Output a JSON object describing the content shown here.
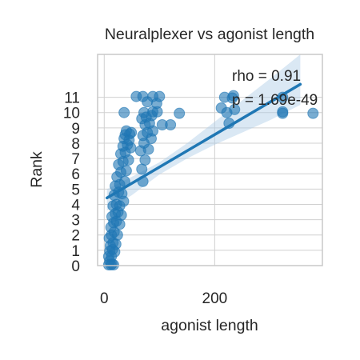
{
  "chart_data": {
    "type": "scatter",
    "title": "Neuralplexer vs agonist length",
    "xlabel": "agonist length",
    "ylabel": "Rank",
    "xlim": [
      -12,
      395
    ],
    "ylim": [
      0,
      13.8
    ],
    "x_ticks": [
      0,
      200
    ],
    "y_ticks": [
      0,
      1,
      2,
      3,
      4,
      5,
      6,
      7,
      8,
      9,
      10,
      11
    ],
    "grid": true,
    "annotations": [
      "rho = 0.91",
      "p = 1.69e-49"
    ],
    "colors": {
      "points": "#1f77b4",
      "regression_line": "#1f77b4",
      "ci_band": "#aecbe6",
      "grid": "#d0d0d0",
      "axes": "#c8c8c8"
    },
    "regression": {
      "slope": 0.0212,
      "intercept": 4.32
    },
    "confidence_band": {
      "x": [
        5,
        50,
        100,
        150,
        200,
        250,
        300,
        355
      ],
      "lower": [
        3.6,
        4.6,
        5.95,
        7.0,
        7.9,
        8.7,
        9.5,
        10.5
      ],
      "upper": [
        5.0,
        5.8,
        6.75,
        8.0,
        9.4,
        10.8,
        12.2,
        13.8
      ]
    },
    "points": [
      {
        "x": 8,
        "y": 0.05
      },
      {
        "x": 12,
        "y": 0.05
      },
      {
        "x": 14,
        "y": 0.1
      },
      {
        "x": 17,
        "y": 0.05
      },
      {
        "x": 10,
        "y": 0.3
      },
      {
        "x": 8,
        "y": 0.6
      },
      {
        "x": 13,
        "y": 0.6
      },
      {
        "x": 10,
        "y": 0.95
      },
      {
        "x": 15,
        "y": 1.05
      },
      {
        "x": 19,
        "y": 0.9
      },
      {
        "x": 11,
        "y": 1.3
      },
      {
        "x": 16,
        "y": 1.5
      },
      {
        "x": 21,
        "y": 1.4
      },
      {
        "x": 9,
        "y": 1.8
      },
      {
        "x": 13,
        "y": 2.0
      },
      {
        "x": 18,
        "y": 2.2
      },
      {
        "x": 24,
        "y": 2.0
      },
      {
        "x": 12,
        "y": 2.5
      },
      {
        "x": 17,
        "y": 2.8
      },
      {
        "x": 22,
        "y": 2.9
      },
      {
        "x": 28,
        "y": 2.7
      },
      {
        "x": 14,
        "y": 3.2
      },
      {
        "x": 20,
        "y": 3.4
      },
      {
        "x": 25,
        "y": 3.5
      },
      {
        "x": 31,
        "y": 3.3
      },
      {
        "x": 16,
        "y": 3.9
      },
      {
        "x": 22,
        "y": 4.0
      },
      {
        "x": 28,
        "y": 3.9
      },
      {
        "x": 35,
        "y": 4.2
      },
      {
        "x": 18,
        "y": 4.6
      },
      {
        "x": 26,
        "y": 4.8
      },
      {
        "x": 32,
        "y": 4.7
      },
      {
        "x": 20,
        "y": 5.2
      },
      {
        "x": 28,
        "y": 5.3
      },
      {
        "x": 37,
        "y": 5.5
      },
      {
        "x": 23,
        "y": 5.8
      },
      {
        "x": 30,
        "y": 6.1
      },
      {
        "x": 40,
        "y": 6.2
      },
      {
        "x": 26,
        "y": 6.6
      },
      {
        "x": 34,
        "y": 6.8
      },
      {
        "x": 44,
        "y": 6.9
      },
      {
        "x": 30,
        "y": 7.3
      },
      {
        "x": 38,
        "y": 7.4
      },
      {
        "x": 34,
        "y": 7.8
      },
      {
        "x": 42,
        "y": 7.9
      },
      {
        "x": 48,
        "y": 7.7
      },
      {
        "x": 36,
        "y": 8.3
      },
      {
        "x": 45,
        "y": 8.2
      },
      {
        "x": 38,
        "y": 8.55
      },
      {
        "x": 46,
        "y": 8.6
      },
      {
        "x": 40,
        "y": 8.8
      },
      {
        "x": 49,
        "y": 8.7
      },
      {
        "x": 70,
        "y": 5.5
      },
      {
        "x": 68,
        "y": 6.3
      },
      {
        "x": 74,
        "y": 6.9
      },
      {
        "x": 66,
        "y": 7.5
      },
      {
        "x": 80,
        "y": 7.6
      },
      {
        "x": 72,
        "y": 8.0
      },
      {
        "x": 85,
        "y": 8.3
      },
      {
        "x": 70,
        "y": 8.5
      },
      {
        "x": 78,
        "y": 8.7
      },
      {
        "x": 88,
        "y": 8.8
      },
      {
        "x": 74,
        "y": 9.2
      },
      {
        "x": 82,
        "y": 9.3
      },
      {
        "x": 105,
        "y": 9.2
      },
      {
        "x": 120,
        "y": 9.2
      },
      {
        "x": 68,
        "y": 9.6
      },
      {
        "x": 76,
        "y": 9.7
      },
      {
        "x": 86,
        "y": 9.8
      },
      {
        "x": 72,
        "y": 10.0
      },
      {
        "x": 88,
        "y": 10.05
      },
      {
        "x": 96,
        "y": 10.05
      },
      {
        "x": 136,
        "y": 9.95
      },
      {
        "x": 36,
        "y": 10.0
      },
      {
        "x": 58,
        "y": 11.05
      },
      {
        "x": 70,
        "y": 11.05
      },
      {
        "x": 88,
        "y": 11.05
      },
      {
        "x": 100,
        "y": 11.05
      },
      {
        "x": 78,
        "y": 10.7
      },
      {
        "x": 95,
        "y": 10.6
      },
      {
        "x": 218,
        "y": 11.0
      },
      {
        "x": 232,
        "y": 10.95
      },
      {
        "x": 234,
        "y": 11.1
      },
      {
        "x": 212,
        "y": 10.3
      },
      {
        "x": 222,
        "y": 10.0
      },
      {
        "x": 236,
        "y": 10.2
      },
      {
        "x": 226,
        "y": 9.3
      },
      {
        "x": 323,
        "y": 11.0
      },
      {
        "x": 323,
        "y": 10.05
      },
      {
        "x": 323,
        "y": 9.95
      },
      {
        "x": 378,
        "y": 9.95
      }
    ]
  }
}
